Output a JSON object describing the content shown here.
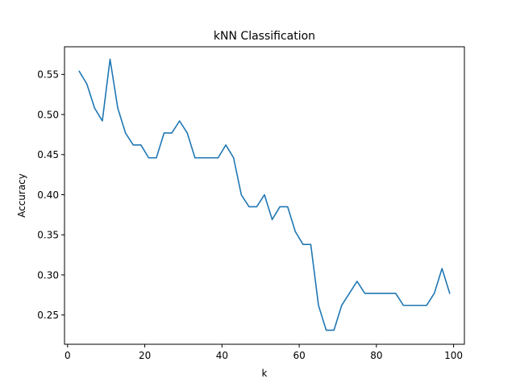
{
  "chart_data": {
    "type": "line",
    "title": "kNN Classification",
    "xlabel": "k",
    "ylabel": "Accuracy",
    "xlim": [
      -0.8,
      102.8
    ],
    "ylim": [
      0.2135,
      0.5845
    ],
    "x_ticks": [
      0,
      20,
      40,
      60,
      80,
      100
    ],
    "x_tick_labels": [
      "0",
      "20",
      "40",
      "60",
      "80",
      "100"
    ],
    "y_ticks": [
      0.25,
      0.3,
      0.35,
      0.4,
      0.45,
      0.5,
      0.55
    ],
    "y_tick_labels": [
      "0.25",
      "0.30",
      "0.35",
      "0.40",
      "0.45",
      "0.50",
      "0.55"
    ],
    "grid": false,
    "series": [
      {
        "color": "#1f77b4",
        "x": [
          3,
          5,
          7,
          9,
          11,
          13,
          15,
          17,
          19,
          21,
          23,
          25,
          27,
          29,
          31,
          33,
          35,
          37,
          39,
          41,
          43,
          45,
          47,
          49,
          51,
          53,
          55,
          57,
          59,
          61,
          63,
          65,
          67,
          69,
          71,
          73,
          75,
          77,
          79,
          81,
          83,
          85,
          87,
          89,
          91,
          93,
          95,
          97,
          99
        ],
        "y": [
          0.554,
          0.538,
          0.508,
          0.492,
          0.569,
          0.508,
          0.477,
          0.462,
          0.462,
          0.446,
          0.446,
          0.477,
          0.477,
          0.492,
          0.477,
          0.446,
          0.446,
          0.446,
          0.446,
          0.462,
          0.446,
          0.4,
          0.385,
          0.385,
          0.4,
          0.369,
          0.385,
          0.385,
          0.354,
          0.338,
          0.338,
          0.262,
          0.231,
          0.231,
          0.262,
          0.277,
          0.292,
          0.277,
          0.277,
          0.277,
          0.277,
          0.277,
          0.262,
          0.262,
          0.262,
          0.262,
          0.277,
          0.308,
          0.277
        ]
      }
    ]
  }
}
